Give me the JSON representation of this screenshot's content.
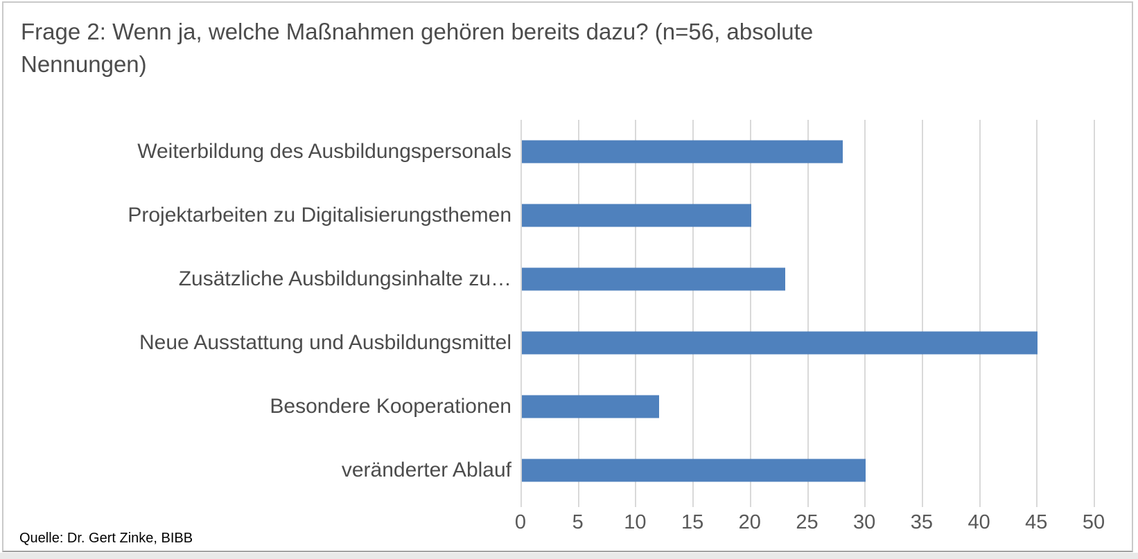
{
  "page": {
    "title": "Frage 2: Wenn ja, welche Maßnahmen gehören bereits dazu? (n=56, absolute Nennungen)",
    "source": "Quelle: Dr. Gert Zinke, BIBB"
  },
  "chart_data": {
    "type": "bar",
    "orientation": "horizontal",
    "title": "Frage 2: Wenn ja, welche Maßnahmen gehören bereits dazu? (n=56, absolute Nennungen)",
    "n": 56,
    "categories": [
      "Weiterbildung des Ausbildungspersonals",
      "Projektarbeiten  zu Digitalisierungsthemen",
      "Zusätzliche Ausbildungsinhalte zu…",
      "Neue Ausstattung und Ausbildungsmittel",
      "Besondere Kooperationen",
      "veränderter Ablauf"
    ],
    "values": [
      28,
      20,
      23,
      45,
      12,
      30
    ],
    "xlabel": "",
    "ylabel": "",
    "xlim": [
      0,
      50
    ],
    "xticks": [
      0,
      5,
      10,
      15,
      20,
      25,
      30,
      35,
      40,
      45,
      50
    ],
    "grid": "vertical-only",
    "legend": "none",
    "data_labels": "none",
    "bar_color": "#4f81bd",
    "gridline_color": "#d9d9d9",
    "text_color": "#4c4c4c",
    "tick_color": "#595959",
    "source": "Quelle: Dr. Gert Zinke, BIBB"
  }
}
